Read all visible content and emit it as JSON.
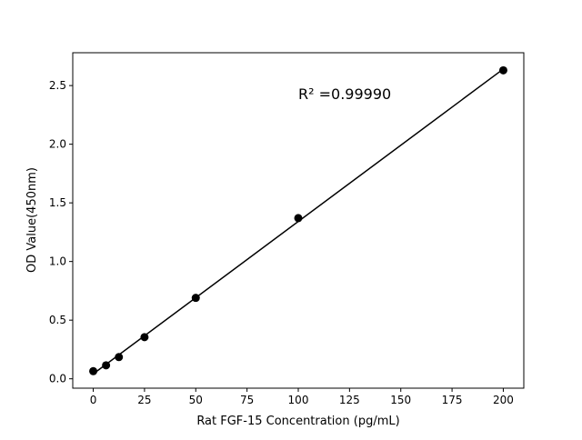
{
  "chart_data": {
    "type": "scatter",
    "title": "",
    "xlabel": "Rat FGF-15 Concentration (pg/mL)",
    "ylabel": "OD Value(450nm)",
    "xlim": [
      -10,
      210
    ],
    "ylim": [
      -0.08,
      2.78
    ],
    "xticks": [
      0,
      25,
      50,
      75,
      100,
      125,
      150,
      175,
      200
    ],
    "yticks": [
      0.0,
      0.5,
      1.0,
      1.5,
      2.0,
      2.5
    ],
    "xtick_labels": [
      "0",
      "25",
      "50",
      "75",
      "100",
      "125",
      "150",
      "175",
      "200"
    ],
    "ytick_labels": [
      "0.0",
      "0.5",
      "1.0",
      "1.5",
      "2.0",
      "2.5"
    ],
    "grid": false,
    "series": [
      {
        "x": [
          0,
          6.25,
          12.5,
          25,
          50,
          100,
          200
        ],
        "y": [
          0.065,
          0.115,
          0.185,
          0.355,
          0.69,
          1.37,
          2.63
        ],
        "color": "#000000",
        "marker": "circle",
        "fit_line": "linear"
      }
    ],
    "annotation": "R² =0.99990"
  }
}
